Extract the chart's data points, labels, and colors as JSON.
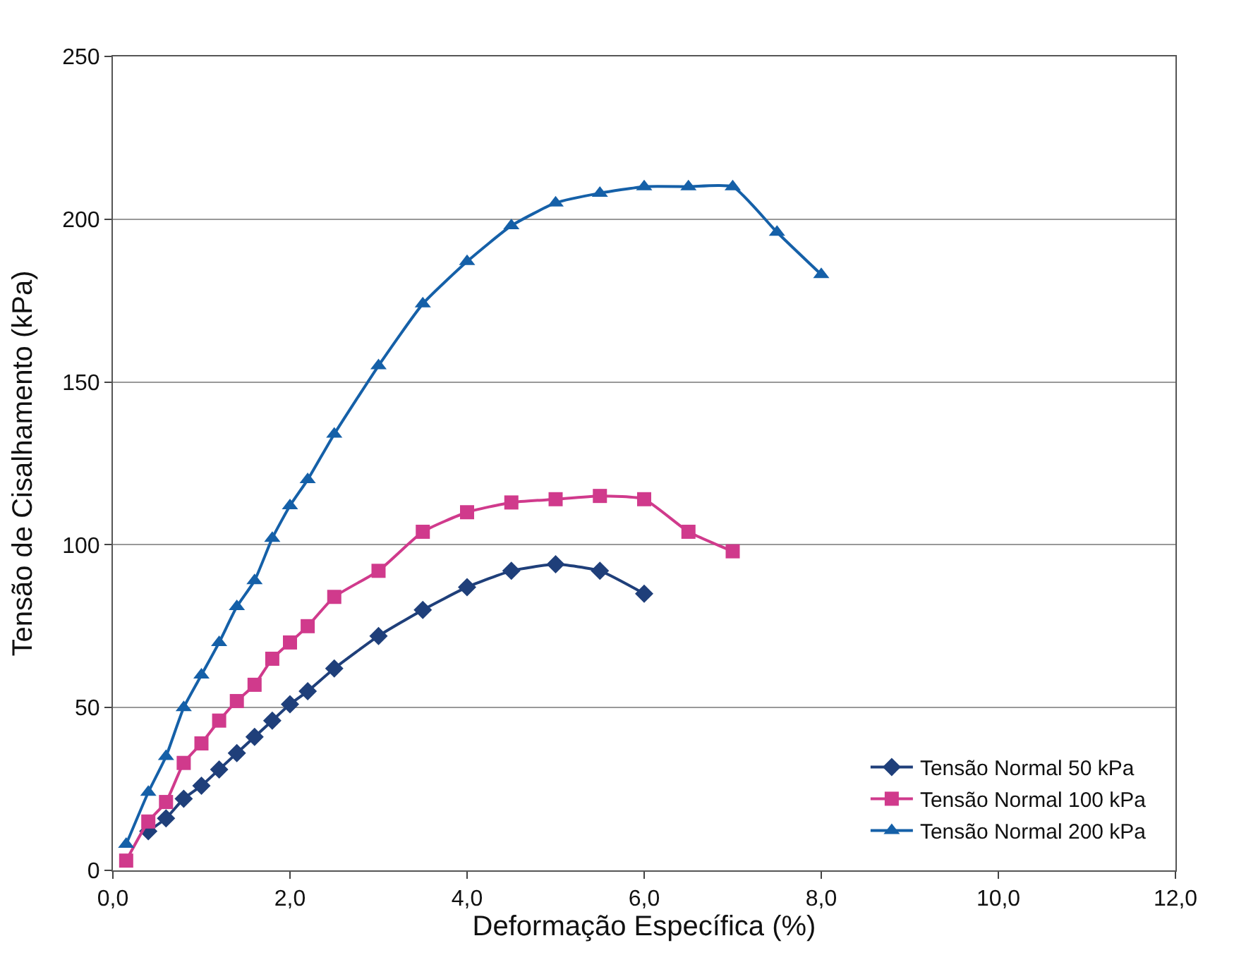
{
  "chart_data": {
    "type": "line",
    "xlabel": "Deformação Específica (%)",
    "ylabel": "Tensão de Cisalhamento (kPa)",
    "xlim": [
      0,
      12
    ],
    "ylim": [
      0,
      250
    ],
    "xticks": [
      {
        "value": 0,
        "label": "0,0"
      },
      {
        "value": 2,
        "label": "2,0"
      },
      {
        "value": 4,
        "label": "4,0"
      },
      {
        "value": 6,
        "label": "6,0"
      },
      {
        "value": 8,
        "label": "8,0"
      },
      {
        "value": 10,
        "label": "10,0"
      },
      {
        "value": 12,
        "label": "12,0"
      }
    ],
    "yticks": [
      0,
      50,
      100,
      150,
      200,
      250
    ],
    "grid": "y",
    "legend": "bottom right",
    "line_style": "solid",
    "series": [
      {
        "name": "Tensão Normal 50 kPa",
        "color": "#1f3f7a",
        "marker": "diamond",
        "x": [
          0.4,
          0.6,
          0.8,
          1.0,
          1.2,
          1.4,
          1.6,
          1.8,
          2.0,
          2.2,
          2.5,
          3.0,
          3.5,
          4.0,
          4.5,
          5.0,
          5.5,
          6.0
        ],
        "values": [
          12,
          16,
          22,
          26,
          31,
          36,
          41,
          46,
          51,
          55,
          62,
          72,
          80,
          87,
          92,
          94,
          92,
          85
        ]
      },
      {
        "name": "Tensão Normal 100 kPa",
        "color": "#d03a8c",
        "marker": "square",
        "x": [
          0.15,
          0.4,
          0.6,
          0.8,
          1.0,
          1.2,
          1.4,
          1.6,
          1.8,
          2.0,
          2.2,
          2.5,
          3.0,
          3.5,
          4.0,
          4.5,
          5.0,
          5.5,
          6.0,
          6.5,
          7.0
        ],
        "values": [
          3,
          15,
          21,
          33,
          39,
          46,
          52,
          57,
          65,
          70,
          75,
          84,
          92,
          104,
          110,
          113,
          114,
          115,
          114,
          104,
          98
        ]
      },
      {
        "name": "Tensão Normal 200 kPa",
        "color": "#1560a8",
        "marker": "triangle",
        "x": [
          0.15,
          0.4,
          0.6,
          0.8,
          1.0,
          1.2,
          1.4,
          1.6,
          1.8,
          2.0,
          2.2,
          2.5,
          3.0,
          3.5,
          4.0,
          4.5,
          5.0,
          5.5,
          6.0,
          6.5,
          7.0,
          7.5,
          8.0
        ],
        "values": [
          8,
          24,
          35,
          50,
          60,
          70,
          81,
          89,
          102,
          112,
          120,
          134,
          155,
          174,
          187,
          198,
          205,
          208,
          210,
          210,
          210,
          196,
          183
        ]
      }
    ]
  }
}
